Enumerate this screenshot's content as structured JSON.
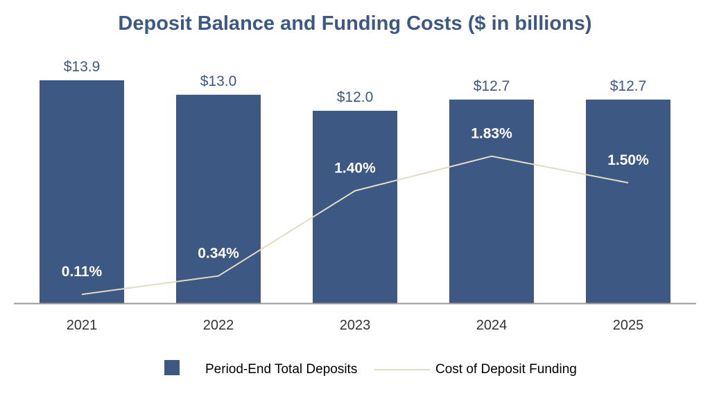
{
  "chart_data": {
    "type": "bar",
    "title": "Deposit Balance and Funding Costs ($ in billions)",
    "categories": [
      "2021",
      "2022",
      "2023",
      "2024",
      "2025"
    ],
    "series": [
      {
        "name": "Period-End Total Deposits",
        "kind": "bar",
        "values": [
          13.9,
          13.0,
          12.0,
          12.7,
          12.7
        ],
        "labels": [
          "$13.9",
          "$13.0",
          "$12.0",
          "$12.7",
          "$12.7"
        ],
        "color": "#3d5882"
      },
      {
        "name": "Cost of Deposit Funding",
        "kind": "line",
        "values": [
          0.11,
          0.34,
          1.4,
          1.83,
          1.5
        ],
        "labels": [
          "0.11%",
          "0.34%",
          "1.40%",
          "1.83%",
          "1.50%"
        ],
        "color": "#e3dcc4"
      }
    ],
    "legend_position": "bottom",
    "grid": false,
    "title_color": "#3d5882",
    "axis_color": "#9a9a9a",
    "text_color": "#333333"
  }
}
